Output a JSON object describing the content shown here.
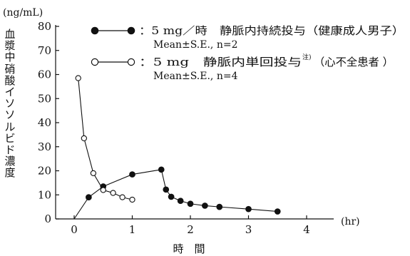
{
  "chart_data": {
    "type": "line",
    "yunit": "(ng/mL)",
    "xunit": "(hr)",
    "ylabel": "血漿中硝酸イソソルビド濃度",
    "xlabel": "時　間",
    "xlim": [
      0,
      4
    ],
    "ylim": [
      0,
      80
    ],
    "xticks": [
      0,
      1,
      2,
      3,
      4
    ],
    "yticks": [
      0,
      10,
      20,
      30,
      40,
      50,
      60,
      70,
      80
    ],
    "legend_position": "top-right",
    "series": [
      {
        "name": "：5 mg／時　静脈内持続投与（健康成人男子）",
        "stat": "Mean±S.E., n=2",
        "marker": "filled-circle",
        "color": "#111111",
        "x": [
          0,
          0.25,
          0.5,
          1.0,
          1.5,
          1.58,
          1.67,
          1.83,
          2.0,
          2.25,
          2.5,
          3.0,
          3.5
        ],
        "y": [
          0,
          9,
          13.5,
          18.5,
          20.5,
          12.2,
          9.2,
          7.5,
          6.3,
          5.5,
          5.0,
          4.1,
          3.1
        ]
      },
      {
        "name": "：5 mg　静脈内単回投与",
        "note": "注)",
        "name_suffix": "（心不全患者 ）",
        "stat": "Mean±S.E., n=4",
        "marker": "open-circle",
        "color": "#111111",
        "x": [
          0.07,
          0.17,
          0.33,
          0.5,
          0.67,
          0.83,
          1.0
        ],
        "y": [
          58.5,
          33.5,
          19.0,
          12.0,
          10.8,
          9.0,
          8.0
        ]
      }
    ]
  }
}
